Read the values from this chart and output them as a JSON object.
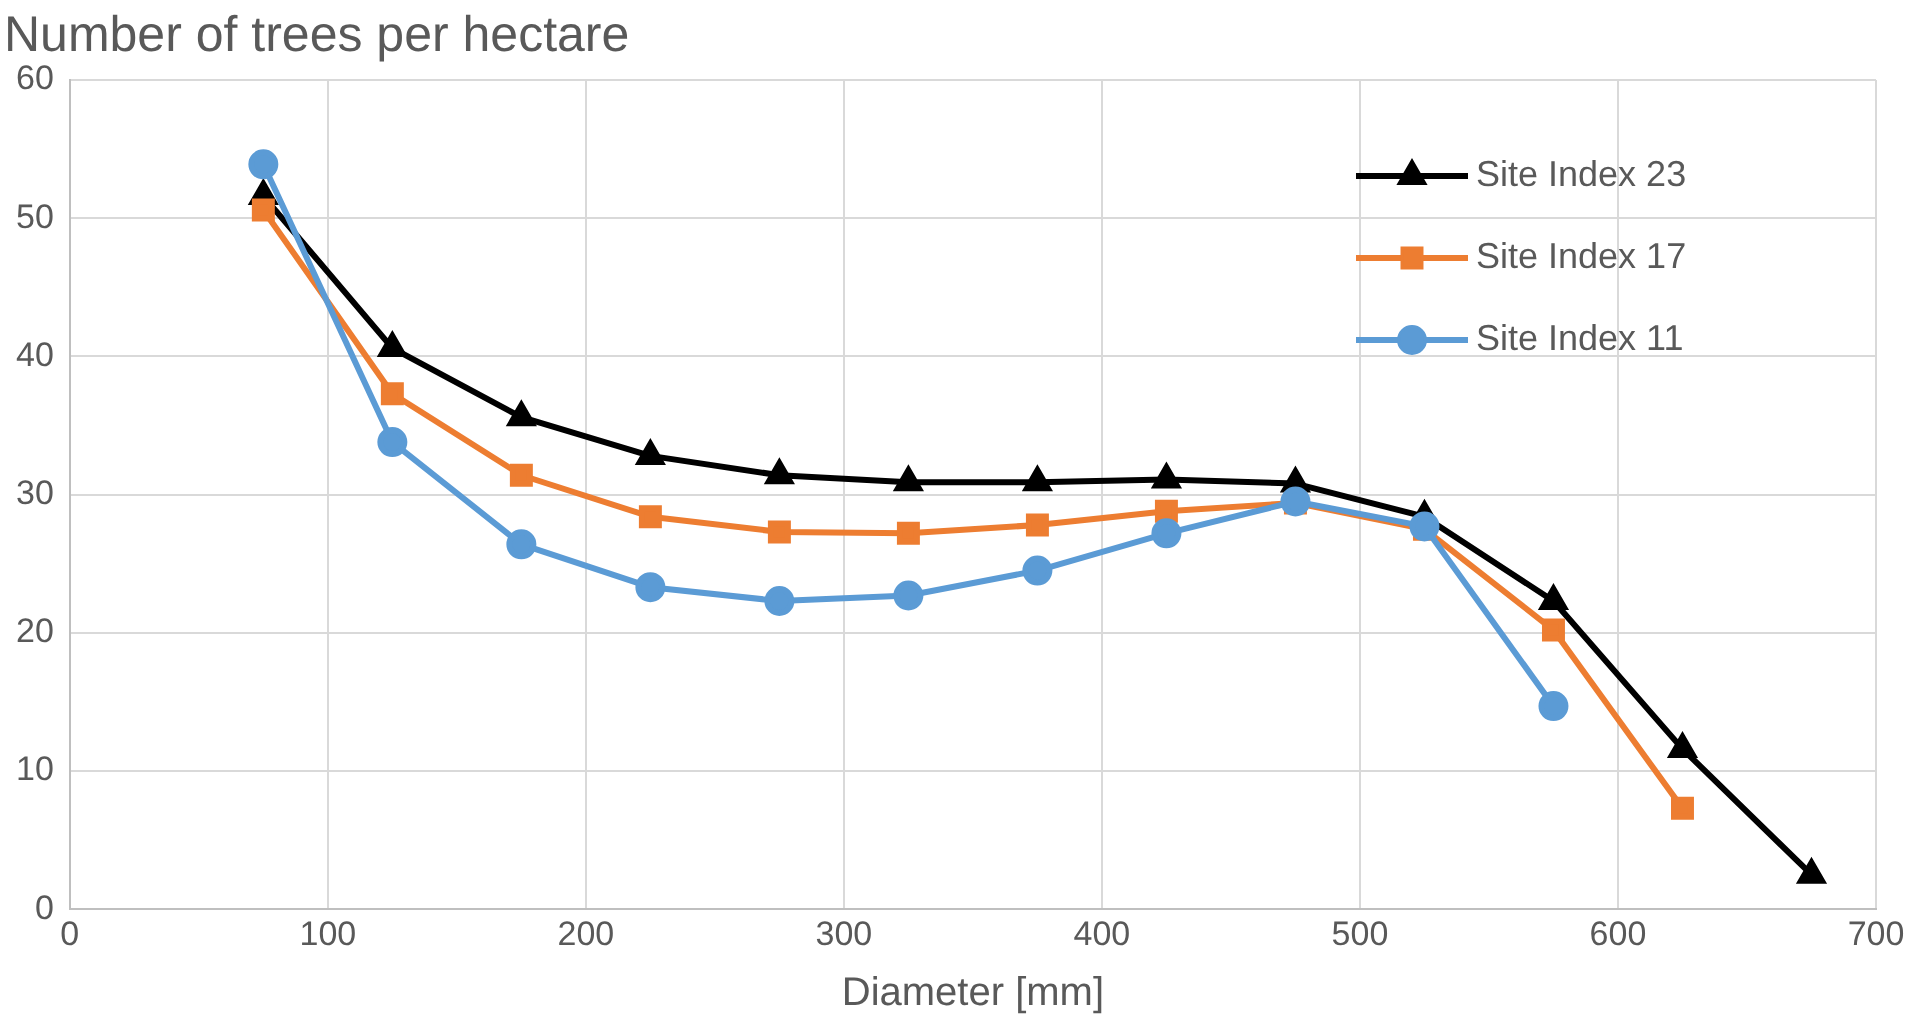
{
  "chart_data": {
    "type": "line",
    "title": "Number of trees per hectare",
    "xlabel": "Diameter [mm]",
    "xlim": [
      0,
      700
    ],
    "xticks": [
      0,
      100,
      200,
      300,
      400,
      500,
      600,
      700
    ],
    "ylim": [
      0,
      60
    ],
    "yticks": [
      0,
      10,
      20,
      30,
      40,
      50,
      60
    ],
    "grid": true,
    "legend": "top right",
    "series": [
      {
        "name": "Site Index 23",
        "color": "#000000",
        "marker": "triangle",
        "x": [
          75,
          125,
          175,
          225,
          275,
          325,
          375,
          425,
          475,
          525,
          575,
          625,
          675
        ],
        "values": [
          51.6,
          40.6,
          35.6,
          32.8,
          31.4,
          30.9,
          30.9,
          31.1,
          30.8,
          28.4,
          22.3,
          11.6,
          2.5
        ]
      },
      {
        "name": "Site Index 17",
        "color": "#ed7d31",
        "marker": "square",
        "x": [
          75,
          125,
          175,
          225,
          275,
          325,
          375,
          425,
          475,
          525,
          575,
          625
        ],
        "values": [
          50.6,
          37.3,
          31.4,
          28.4,
          27.3,
          27.2,
          27.8,
          28.8,
          29.4,
          27.5,
          20.2,
          7.3
        ]
      },
      {
        "name": "Site Index 11",
        "color": "#5b9bd5",
        "marker": "circle",
        "x": [
          75,
          125,
          175,
          225,
          275,
          325,
          375,
          425,
          475,
          525,
          575
        ],
        "values": [
          53.9,
          33.8,
          26.4,
          23.3,
          22.3,
          22.7,
          24.5,
          27.2,
          29.5,
          27.7,
          14.7
        ]
      }
    ]
  }
}
